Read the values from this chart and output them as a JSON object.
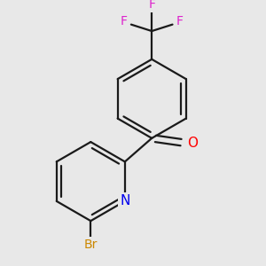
{
  "background_color": "#e8e8e8",
  "bond_color": "#1a1a1a",
  "atom_colors": {
    "F": "#dd22cc",
    "O": "#ff0000",
    "N": "#0000ee",
    "Br": "#cc8800"
  },
  "bond_width": 1.6,
  "fig_size": [
    3.0,
    3.0
  ],
  "dpi": 100
}
